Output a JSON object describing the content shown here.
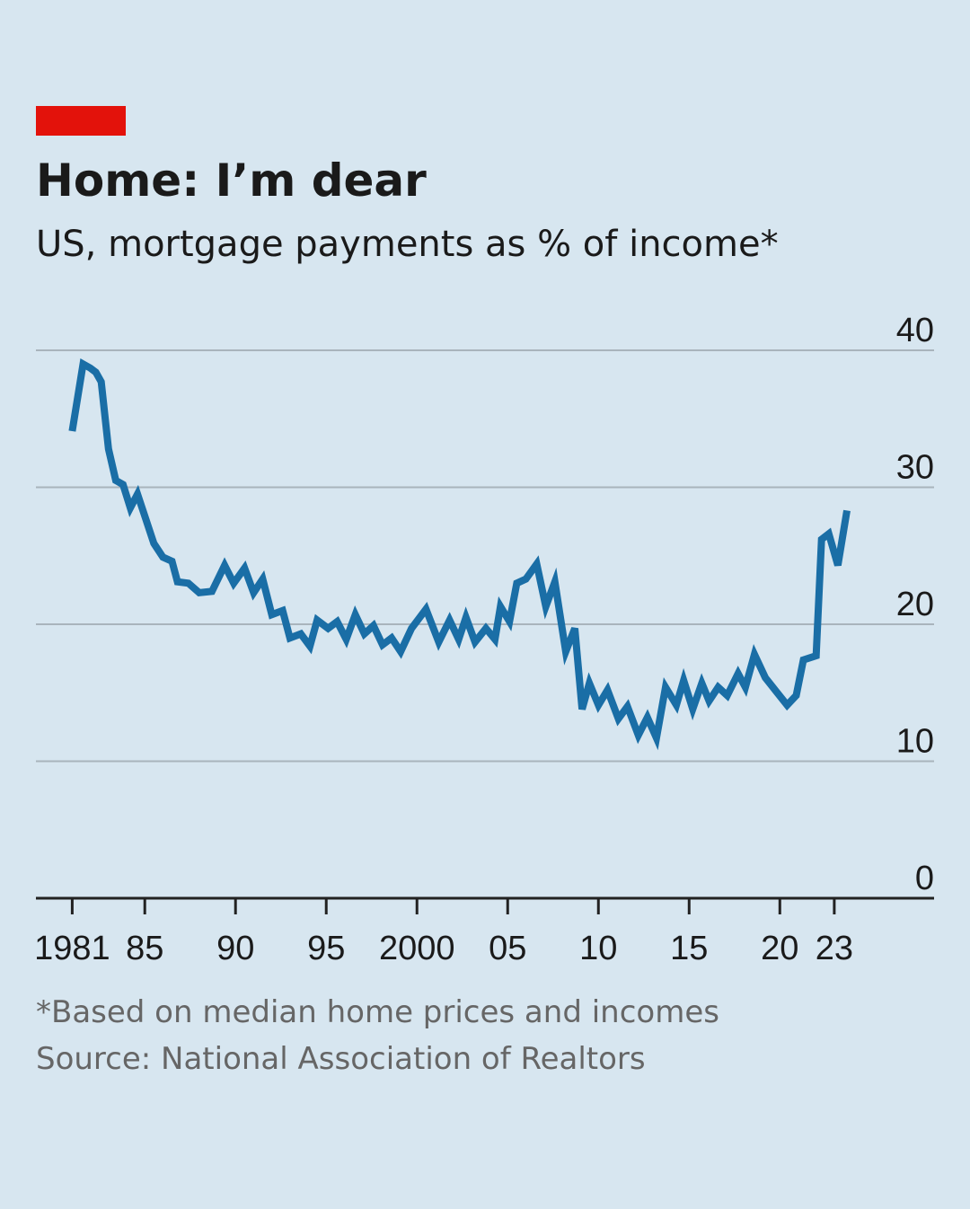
{
  "chart_data": {
    "type": "line",
    "title": "Home: I’m dear",
    "subtitle": "US, mortgage payments as % of income*",
    "note": "*Based on median home prices and incomes",
    "source": "Source: National Association of Realtors",
    "color": "#1a6ea6",
    "x": [
      1981.0,
      1981.6,
      1982.0,
      1982.3,
      1982.6,
      1983.0,
      1983.4,
      1983.8,
      1984.2,
      1984.6,
      1985.0,
      1985.5,
      1986.0,
      1986.5,
      1986.8,
      1987.4,
      1988.0,
      1988.7,
      1989.4,
      1989.9,
      1990.5,
      1991.0,
      1991.5,
      1992.0,
      1992.6,
      1993.0,
      1993.6,
      1994.1,
      1994.5,
      1995.1,
      1995.6,
      1996.1,
      1996.6,
      1997.1,
      1997.6,
      1998.1,
      1998.6,
      1999.1,
      1999.7,
      2000.5,
      2001.2,
      2001.8,
      2002.3,
      2002.7,
      2003.2,
      2003.8,
      2004.3,
      2004.6,
      2005.1,
      2005.5,
      2006.0,
      2006.6,
      2007.1,
      2007.6,
      2008.2,
      2008.7,
      2009.1,
      2009.5,
      2010.0,
      2010.5,
      2011.1,
      2011.6,
      2012.2,
      2012.7,
      2013.2,
      2013.7,
      2014.3,
      2014.7,
      2015.2,
      2015.7,
      2016.1,
      2016.6,
      2017.1,
      2017.7,
      2018.1,
      2018.6,
      2019.2,
      2019.8,
      2020.4,
      2020.9,
      2021.3,
      2022.0,
      2022.3,
      2022.7,
      2023.2,
      2023.7
    ],
    "values": [
      34.1,
      39.0,
      38.7,
      38.4,
      37.7,
      32.8,
      30.5,
      30.2,
      28.5,
      29.5,
      27.9,
      25.9,
      24.9,
      24.6,
      23.1,
      23.0,
      22.3,
      22.4,
      24.3,
      23.0,
      24.1,
      22.3,
      23.3,
      20.7,
      21.0,
      19.0,
      19.3,
      18.4,
      20.3,
      19.7,
      20.2,
      18.9,
      20.7,
      19.3,
      19.9,
      18.5,
      19.0,
      18.0,
      19.7,
      21.1,
      18.7,
      20.3,
      18.9,
      20.5,
      18.7,
      19.7,
      18.9,
      21.3,
      20.2,
      23.0,
      23.3,
      24.4,
      21.3,
      23.1,
      18.0,
      19.7,
      13.8,
      15.7,
      14.1,
      15.2,
      13.1,
      14.0,
      11.9,
      13.2,
      11.7,
      15.4,
      14.1,
      15.9,
      13.8,
      15.7,
      14.4,
      15.4,
      14.8,
      16.4,
      15.4,
      17.8,
      16.1,
      15.1,
      14.1,
      14.8,
      17.4,
      17.7,
      26.2,
      26.6,
      24.3,
      28.3
    ],
    "xlim": [
      1979,
      2028.5
    ],
    "xticks": [
      1981,
      {
        "value": 1985,
        "label": "85"
      },
      {
        "value": 1990,
        "label": "90"
      },
      {
        "value": 1995,
        "label": "95"
      },
      2000,
      {
        "value": 2005,
        "label": "05"
      },
      10,
      15,
      20,
      23
    ],
    "ylim": [
      0,
      40
    ],
    "yticks": [
      0,
      10,
      20,
      30,
      40
    ],
    "grid": true
  }
}
